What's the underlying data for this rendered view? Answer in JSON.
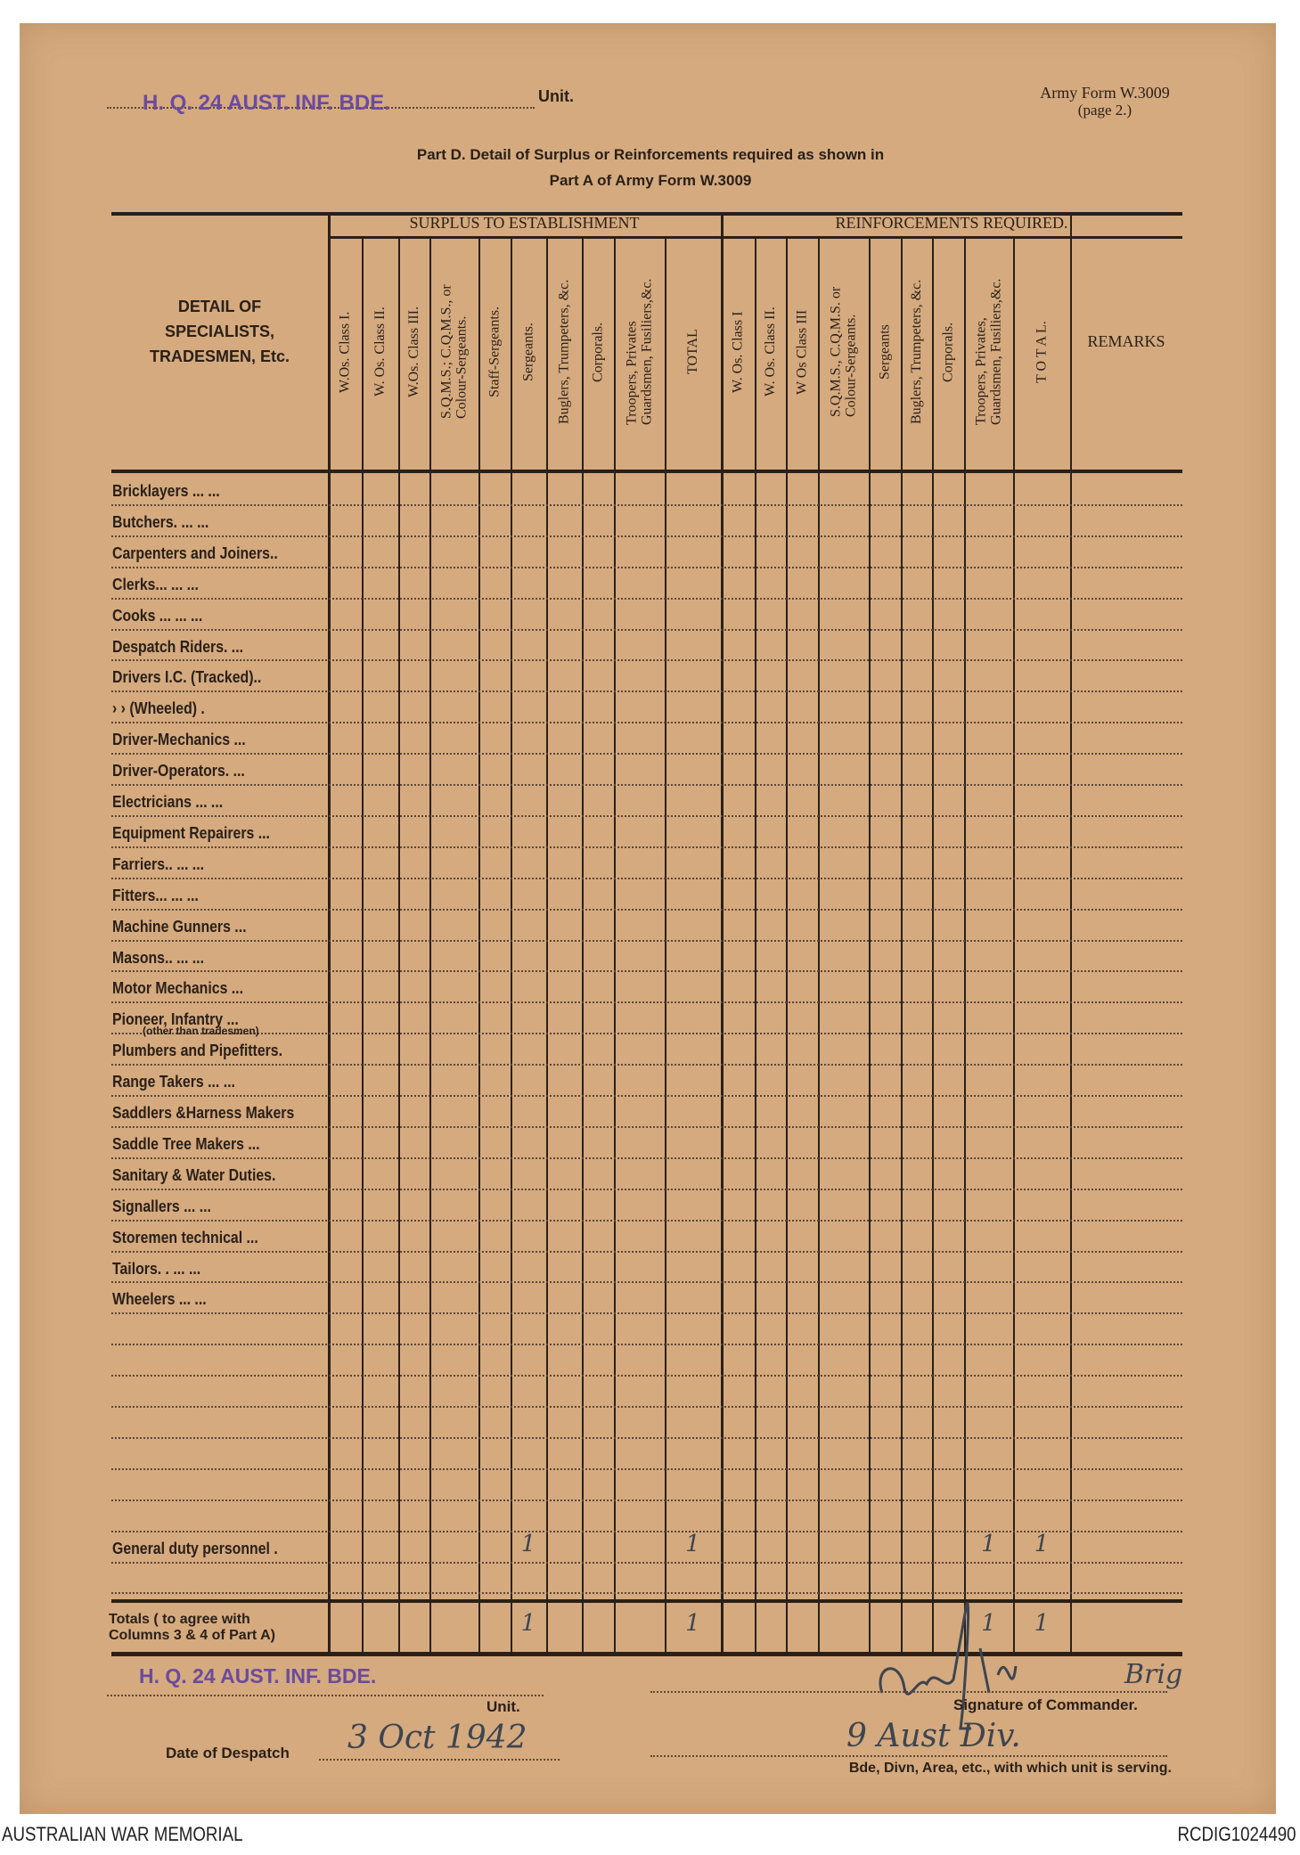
{
  "header": {
    "unit_stamp": "H. Q. 24 AUST. INF. BDE.",
    "unit_label": "Unit.",
    "form_number": "Army Form W.3009",
    "form_page": "(page 2.)",
    "title_line1": "Part D. Detail of Surplus or Reinforcements required as shown in",
    "title_line2": "Part A of Army Form W.3009"
  },
  "table": {
    "detail_header": "DETAIL OF\nSPECIALISTS,\nTRADESMEN, Etc.",
    "surplus_header": "SURPLUS TO ESTABLISHMENT",
    "reinforcements_header": "REINFORCEMENTS REQUIRED.",
    "remarks_header": "REMARKS",
    "surplus_columns": [
      "W.Os. Class I.",
      "W. Os. Class II.",
      "W.Os. Class III.",
      "S.Q.M.S.; C.Q.M.S., or\nColour-Sergeants.",
      "Staff-Sergeants.",
      "Sergeants.",
      "Buglers, Trumpeters, &c.",
      "Corporals.",
      "Troopers, Privates\nGuardsmen, Fusiliers,&c.",
      "TOTAL"
    ],
    "reinforcement_columns": [
      "W. Os. Class I",
      "W. Os. Class II.",
      "W Os Class III",
      "S.Q.M.S., C.Q.M.S. or\nColour-Sergeants.",
      "Sergeants",
      "Buglers, Trumpeters, &c.",
      "Corporals.",
      "Troopers, Privates,\nGuardsmen, Fusiliers,&c.",
      "T O T A L."
    ],
    "rows": [
      {
        "label": "Bricklayers   ...     ..."
      },
      {
        "label": "Butchers.     ...     ..."
      },
      {
        "label": "Carpenters and Joiners.."
      },
      {
        "label": "Clerks...     ...     ..."
      },
      {
        "label": "Cooks ...     ...     ..."
      },
      {
        "label": "Despatch Riders.     ..."
      },
      {
        "label": "Drivers I.C. (Tracked).."
      },
      {
        "label": "   ›      ›  (Wheeled) ."
      },
      {
        "label": "Driver-Mechanics     ..."
      },
      {
        "label": "Driver-Operators.     ..."
      },
      {
        "label": "Electricians   ...     ..."
      },
      {
        "label": "Equipment Repairers ..."
      },
      {
        "label": "Farriers..     ...     ..."
      },
      {
        "label": "Fitters...     ...     ..."
      },
      {
        "label": "Machine Gunners     ..."
      },
      {
        "label": "Masons..     ...     ..."
      },
      {
        "label": "Motor Mechanics     ..."
      },
      {
        "label": "Pioneer, Infantry      ...",
        "sub": "(other than tradesmen)"
      },
      {
        "label": "Plumbers and Pipefitters."
      },
      {
        "label": "Range Takers ...     ..."
      },
      {
        "label": "Saddlers &Harness Makers"
      },
      {
        "label": "Saddle Tree Makers ..."
      },
      {
        "label": "Sanitary & Water Duties."
      },
      {
        "label": "Signallers     ...     ..."
      },
      {
        "label": "Storemen technical   ..."
      },
      {
        "label": "Tailors. .     ...     ..."
      },
      {
        "label": "Wheelers     ...     ..."
      },
      {
        "label": ""
      },
      {
        "label": ""
      },
      {
        "label": ""
      },
      {
        "label": ""
      },
      {
        "label": ""
      },
      {
        "label": ""
      },
      {
        "label": ""
      },
      {
        "label": "General duty personnel .",
        "surplus": {
          "5": "1",
          "9": "1"
        },
        "reinforcements": {
          "7": "1",
          "8": "1"
        }
      },
      {
        "label": ""
      }
    ],
    "totals": {
      "label": "Totals ( to agree with\nColumns 3 & 4 of Part A)",
      "surplus": {
        "5": "1",
        "9": "1"
      },
      "reinforcements": {
        "7": "1",
        "8": "1"
      }
    }
  },
  "footer": {
    "unit_stamp": "H. Q. 24 AUST. INF. BDE.",
    "unit_label": "Unit.",
    "signature_rank": "Brig",
    "signature_label": "Signature of Commander.",
    "date_label": "Date of Despatch",
    "date_value": "3 Oct 1942",
    "formation_value": "9 Aust Div.",
    "formation_label": "Bde, Divn, Area, etc., with which unit is serving."
  },
  "caption": {
    "left": "AUSTRALIAN WAR MEMORIAL",
    "right": "RCDIG1024490"
  },
  "colors": {
    "paper": "#d5aa7f",
    "stamp": "#6b4b9c",
    "ink": "#2a2018",
    "handwriting": "#3d4550"
  }
}
